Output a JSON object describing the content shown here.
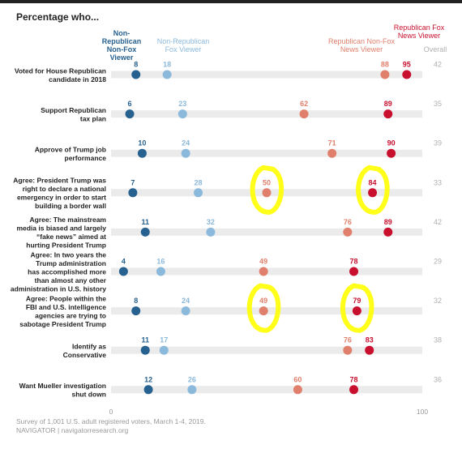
{
  "title": "Percentage who...",
  "legend": {
    "nonrep_nonfox": "Non-Republican Non-Fox Viewer",
    "nonrep_fox": "Non-Republican Fox Viewer",
    "rep_nonfox": "Republican Non-Fox News Viewer",
    "rep_fox": "Republican Fox News Viewer",
    "overall": "Overall"
  },
  "colors": {
    "nonrep_nonfox": "#27618f",
    "nonrep_fox": "#8bb9dc",
    "rep_nonfox": "#e0806c",
    "rep_fox": "#c8102e",
    "overall": "#b0b0b0",
    "track": "#ebebeb",
    "highlight": "#ffff00"
  },
  "source": {
    "line1": "Survey of 1,001 U.S. adult registered voters, March 1-4, 2019.",
    "line2": "NAVIGATOR | navigatorresearch.org"
  },
  "chart_data": {
    "type": "dot",
    "xlim": [
      0,
      100
    ],
    "xticks": [
      "0",
      "100"
    ],
    "series_keys": [
      "nonrep_nonfox",
      "nonrep_fox",
      "rep_nonfox",
      "rep_fox"
    ],
    "rows": [
      {
        "label": [
          "Voted for House Republican",
          "candidate in 2018"
        ],
        "values": [
          8,
          18,
          88,
          95
        ],
        "overall": 42
      },
      {
        "label": [
          "Support Republican",
          "tax plan"
        ],
        "values": [
          6,
          23,
          62,
          89
        ],
        "overall": 35
      },
      {
        "label": [
          "Approve of Trump job",
          "performance"
        ],
        "values": [
          10,
          24,
          71,
          90
        ],
        "overall": 39
      },
      {
        "label": [
          "Agree: President Trump was",
          "right to declare a national",
          "emergency in order to start",
          "building a border wall"
        ],
        "values": [
          7,
          28,
          50,
          84
        ],
        "overall": 33
      },
      {
        "label": [
          "Agree: The mainstream",
          "media is biased and largely",
          "“fake news” aimed at",
          "hurting President Trump"
        ],
        "values": [
          11,
          32,
          76,
          89
        ],
        "overall": 42
      },
      {
        "label": [
          "Agree: In two years the",
          "Trump administration",
          "has accomplished more",
          "than almost any other",
          "administration in U.S. history"
        ],
        "values": [
          4,
          16,
          49,
          78
        ],
        "overall": 29
      },
      {
        "label": [
          "Agree: People within the",
          "FBI and U.S. intelligence",
          "agencies are trying to",
          "sabotage President Trump"
        ],
        "values": [
          8,
          24,
          49,
          79
        ],
        "overall": 32
      },
      {
        "label": [
          "Identify as",
          "Conservative"
        ],
        "values": [
          11,
          17,
          76,
          83
        ],
        "overall": 38
      },
      {
        "label": [
          "Want Mueller investigation",
          "shut down"
        ],
        "values": [
          12,
          26,
          60,
          78
        ],
        "overall": 36
      }
    ],
    "annotations": [
      {
        "type": "hand-drawn circle",
        "color": "highlight",
        "row": 3,
        "value": 50
      },
      {
        "type": "hand-drawn circle",
        "color": "highlight",
        "row": 3,
        "value": 84
      },
      {
        "type": "hand-drawn circle",
        "color": "highlight",
        "row": 6,
        "value": 49
      },
      {
        "type": "hand-drawn circle",
        "color": "highlight",
        "row": 6,
        "value": 79
      }
    ]
  }
}
